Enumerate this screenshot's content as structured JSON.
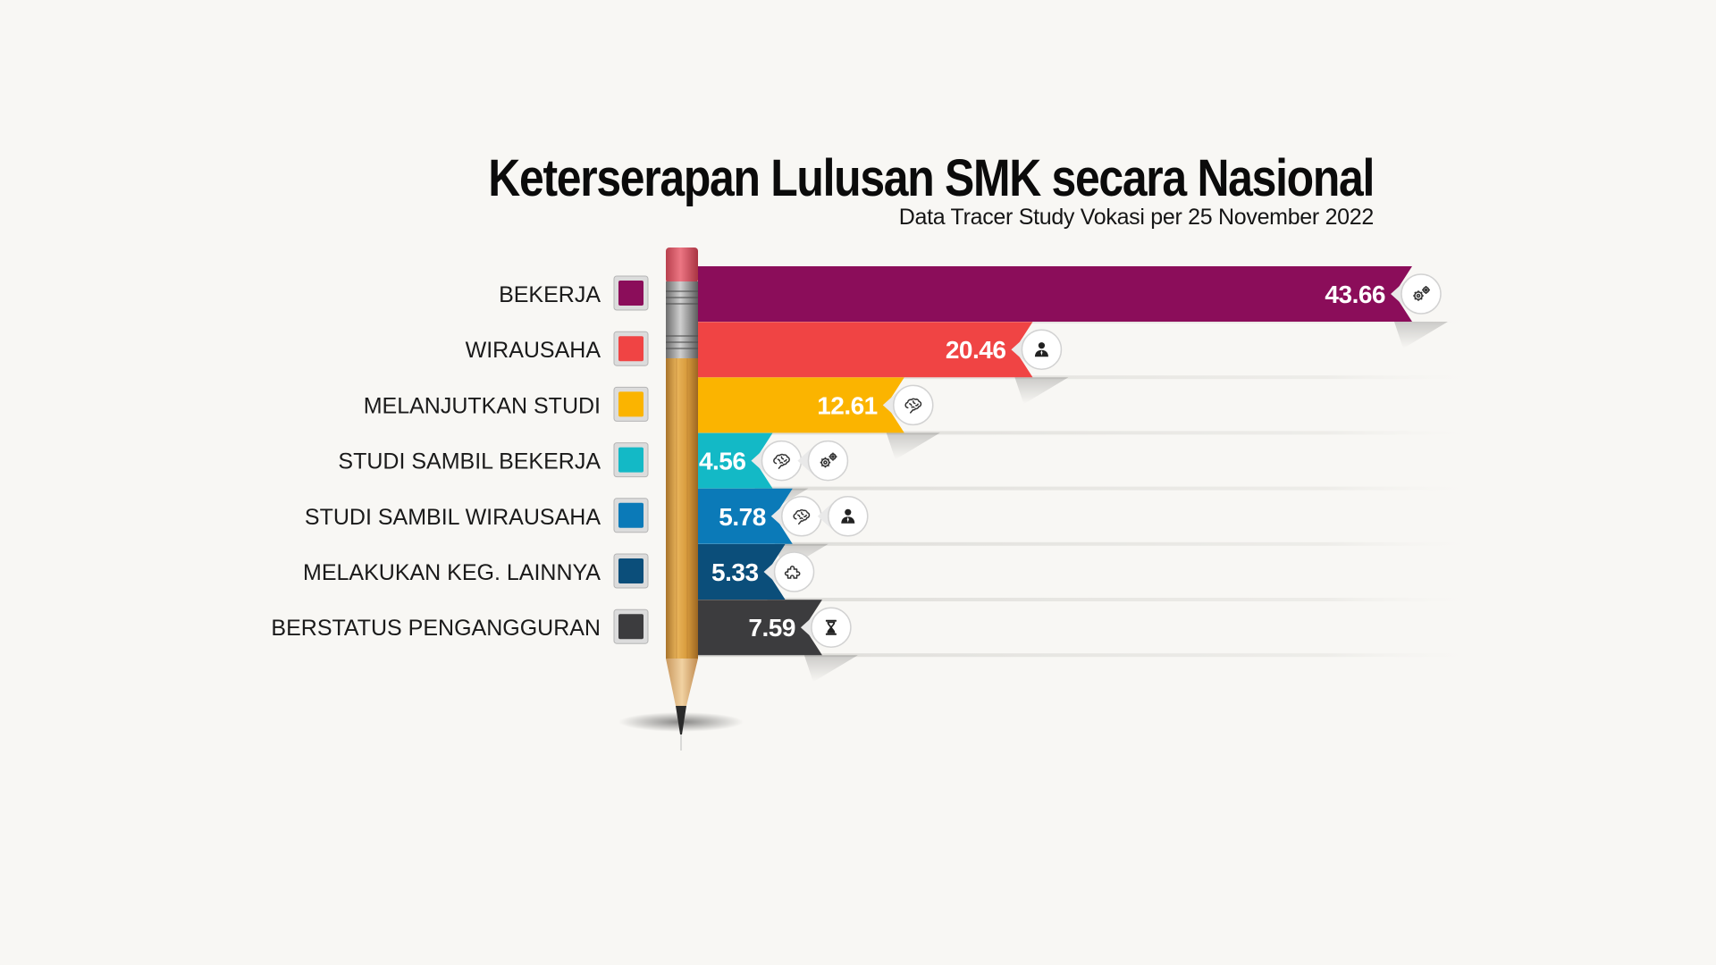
{
  "title": "Keterserapan Lulusan SMK secara Nasional",
  "subtitle": "Data Tracer Study Vokasi per 25 November 2022",
  "chart_data": {
    "type": "bar",
    "orientation": "horizontal",
    "title": "Keterserapan Lulusan SMK secara Nasional",
    "subtitle": "Data Tracer Study Vokasi per 25 November 2022",
    "categories": [
      "BEKERJA",
      "WIRAUSAHA",
      "MELANJUTKAN STUDI",
      "STUDI SAMBIL BEKERJA",
      "STUDI SAMBIL WIRAUSAHA",
      "MELAKUKAN KEG. LAINNYA",
      "BERSTATUS PENGANGGURAN"
    ],
    "values": [
      43.66,
      20.46,
      12.61,
      4.56,
      5.78,
      5.33,
      7.59
    ],
    "value_labels": [
      "43.66",
      "20.46",
      "12.61",
      "4.56",
      "5.78",
      "5.33",
      "7.59"
    ],
    "colors": [
      "#8b0d5a",
      "#f04444",
      "#fbb400",
      "#13b9c6",
      "#0b7ab8",
      "#0b4e7a",
      "#3c3c3e"
    ],
    "icons": [
      [
        "gears-icon"
      ],
      [
        "person-icon"
      ],
      [
        "brain-icon"
      ],
      [
        "brain-icon",
        "gears-icon"
      ],
      [
        "brain-icon",
        "person-icon"
      ],
      [
        "puzzle-icon"
      ],
      [
        "hourglass-icon"
      ]
    ],
    "xlim": [
      0,
      43.66
    ],
    "grid": false,
    "legend": "left"
  }
}
